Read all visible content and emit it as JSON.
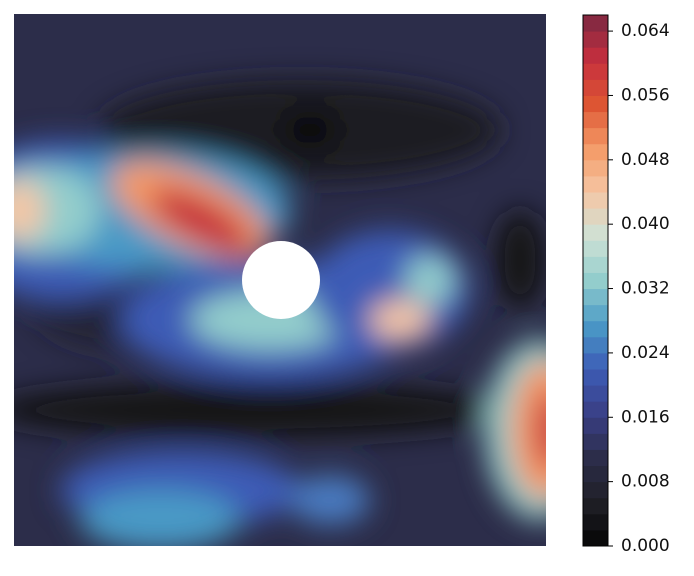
{
  "chart_data": {
    "type": "contour",
    "colorbar_lim": [
      0,
      0.066
    ],
    "colorbar_ticks": [
      {
        "value": 0,
        "label": "0.000"
      },
      {
        "value": 0.008,
        "label": "0.008"
      },
      {
        "value": 0.016,
        "label": "0.016"
      },
      {
        "value": 0.024,
        "label": "0.024"
      },
      {
        "value": 0.032,
        "label": "0.032"
      },
      {
        "value": 0.04,
        "label": "0.040"
      },
      {
        "value": 0.048,
        "label": "0.048"
      },
      {
        "value": 0.056,
        "label": "0.056"
      },
      {
        "value": 0.064,
        "label": "0.064"
      }
    ],
    "colormap": [
      "#050505",
      "#1f1f26",
      "#2c2d4a",
      "#3a3f86",
      "#3d5cb6",
      "#4a9ac6",
      "#93cdcc",
      "#cfe2d6",
      "#f5c6a4",
      "#f49a66",
      "#dd5533",
      "#c52f3e",
      "#7b2842"
    ]
  }
}
